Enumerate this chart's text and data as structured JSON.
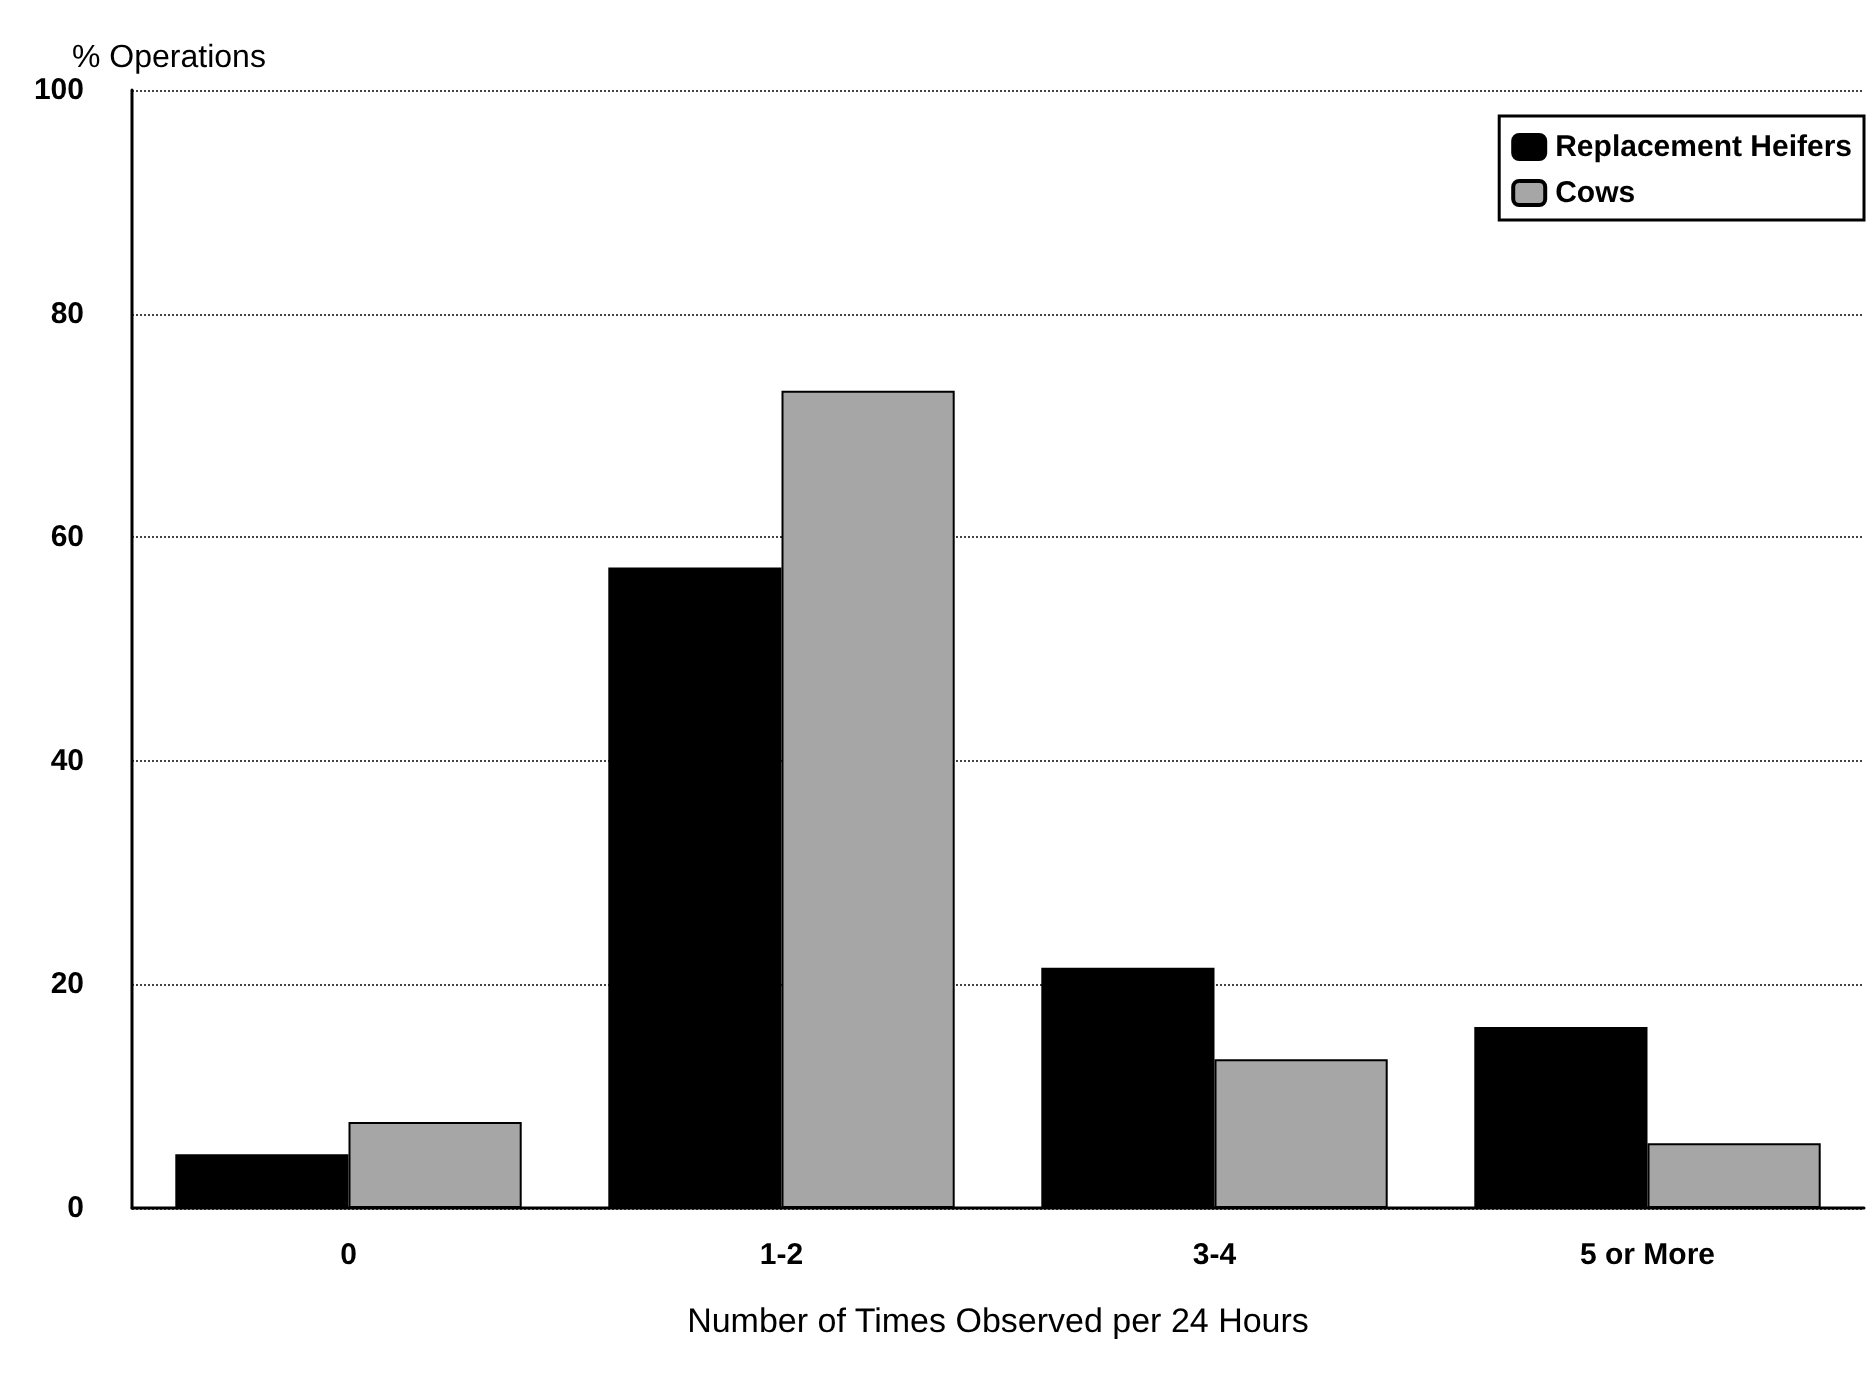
{
  "chart_data": {
    "type": "bar",
    "ylabel": "% Operations",
    "xlabel": "Number of Times Observed per 24 Hours",
    "categories": [
      "0",
      "1-2",
      "3-4",
      "5 or More"
    ],
    "series": [
      {
        "name": "Replacement Heifers",
        "color": "#000000",
        "values": [
          4.8,
          57.3,
          21.5,
          16.2
        ]
      },
      {
        "name": "Cows",
        "color": "#a6a6a6",
        "values": [
          7.7,
          73.1,
          13.3,
          5.8
        ]
      }
    ],
    "ylim": [
      0,
      100
    ],
    "yticks": [
      0,
      20,
      40,
      60,
      80,
      100
    ],
    "grid": "y",
    "legend": "top right"
  }
}
